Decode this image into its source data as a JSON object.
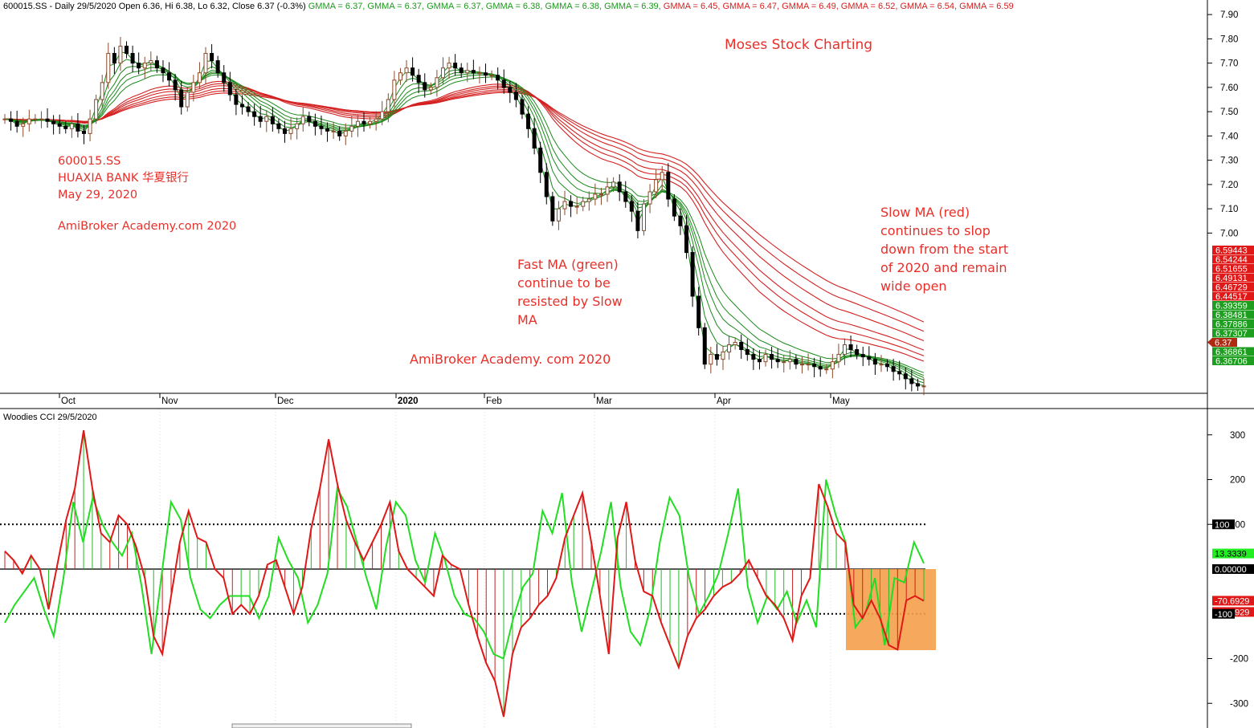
{
  "header": {
    "prefix": "600015.SS - Daily 29/5/2020 Open 6.36, Hi 6.38, Lo 6.32, Close 6.37 (-0.3%)",
    "gmma": [
      {
        "text": "GMMA = 6.37,",
        "color": "#1a9a1a"
      },
      {
        "text": "GMMA = 6.37,",
        "color": "#1a9a1a"
      },
      {
        "text": "GMMA = 6.37,",
        "color": "#1a9a1a"
      },
      {
        "text": "GMMA = 6.38,",
        "color": "#1a9a1a"
      },
      {
        "text": "GMMA = 6.38,",
        "color": "#1a9a1a"
      },
      {
        "text": "GMMA = 6.39,",
        "color": "#1a9a1a"
      },
      {
        "text": "GMMA = 6.45,",
        "color": "#d42020"
      },
      {
        "text": "GMMA = 6.47,",
        "color": "#d42020"
      },
      {
        "text": "GMMA = 6.49,",
        "color": "#d42020"
      },
      {
        "text": "GMMA = 6.52,",
        "color": "#d42020"
      },
      {
        "text": "GMMA = 6.54,",
        "color": "#d42020"
      },
      {
        "text": "GMMA = 6.59",
        "color": "#d42020"
      }
    ]
  },
  "annotations": {
    "moses": "Moses Stock Charting",
    "ticker_lines": [
      "600015.SS",
      "HUAXIA BANK 华夏银行",
      "May 29, 2020"
    ],
    "academy_top": "AmiBroker Academy.com  2020",
    "fast_ma_lines": [
      "Fast MA (green)",
      "continue to be",
      "resisted by Slow",
      "MA"
    ],
    "academy_mid": "AmiBroker Academy. com  2020",
    "slow_ma_lines": [
      "Slow MA (red)",
      "continues to slop",
      "down from the start",
      "of 2020 and remain",
      "wide open"
    ]
  },
  "cci_header": "Woodies CCI  29/5/2020",
  "chart_data": [
    {
      "type": "candlestick",
      "title": "600015.SS - Daily 29/5/2020",
      "ylim": [
        6.34,
        7.96
      ],
      "y_ticks": [
        "7.90",
        "7.80",
        "7.70",
        "7.60",
        "7.50",
        "7.40",
        "7.30",
        "7.20",
        "7.10",
        "7.00"
      ],
      "month_labels": [
        "Oct",
        "Nov",
        "Dec",
        "2020",
        "Feb",
        "Mar",
        "Apr",
        "May"
      ],
      "ohlc": {
        "open": 6.36,
        "high": 6.38,
        "low": 6.32,
        "close": 6.37,
        "change_pct": -0.3
      },
      "gmma_fast_last": [
        6.37,
        6.37,
        6.37,
        6.38,
        6.38,
        6.39
      ],
      "gmma_slow_last": [
        6.45,
        6.47,
        6.49,
        6.52,
        6.54,
        6.59
      ],
      "close_series": [
        7.47,
        7.46,
        7.44,
        7.45,
        7.47,
        7.47,
        7.47,
        7.46,
        7.45,
        7.44,
        7.43,
        7.45,
        7.42,
        7.41,
        7.47,
        7.55,
        7.62,
        7.74,
        7.7,
        7.77,
        7.74,
        7.7,
        7.68,
        7.7,
        7.71,
        7.68,
        7.66,
        7.63,
        7.59,
        7.52,
        7.58,
        7.62,
        7.66,
        7.74,
        7.71,
        7.66,
        7.62,
        7.57,
        7.53,
        7.52,
        7.5,
        7.48,
        7.46,
        7.48,
        7.45,
        7.43,
        7.41,
        7.43,
        7.45,
        7.48,
        7.46,
        7.44,
        7.43,
        7.42,
        7.42,
        7.4,
        7.42,
        7.44,
        7.46,
        7.45,
        7.46,
        7.47,
        7.5,
        7.55,
        7.63,
        7.66,
        7.68,
        7.65,
        7.62,
        7.59,
        7.6,
        7.64,
        7.68,
        7.7,
        7.68,
        7.66,
        7.67,
        7.66,
        7.66,
        7.65,
        7.65,
        7.63,
        7.6,
        7.58,
        7.55,
        7.49,
        7.43,
        7.35,
        7.25,
        7.15,
        7.05,
        7.1,
        7.13,
        7.11,
        7.11,
        7.13,
        7.14,
        7.16,
        7.16,
        7.19,
        7.21,
        7.17,
        7.13,
        7.09,
        7.01,
        7.12,
        7.17,
        7.22,
        7.25,
        7.14,
        7.07,
        7.03,
        6.92,
        6.74,
        6.61,
        6.46,
        6.5,
        6.48,
        6.51,
        6.54,
        6.55,
        6.52,
        6.5,
        6.48,
        6.47,
        6.5,
        6.48,
        6.47,
        6.47,
        6.48,
        6.46,
        6.46,
        6.46,
        6.45,
        6.44,
        6.44,
        6.47,
        6.5,
        6.54,
        6.52,
        6.5,
        6.49,
        6.48,
        6.46,
        6.46,
        6.45,
        6.43,
        6.42,
        6.4,
        6.38,
        6.37,
        6.37
      ],
      "price_tags": [
        {
          "text": "6.59443",
          "color": "#e01818"
        },
        {
          "text": "6.54244",
          "color": "#e01818"
        },
        {
          "text": "6.51655",
          "color": "#e01818"
        },
        {
          "text": "6.49131",
          "color": "#e01818"
        },
        {
          "text": "6.46729",
          "color": "#e01818"
        },
        {
          "text": "6.44517",
          "color": "#e01818"
        },
        {
          "text": "6.39359",
          "color": "#1e9e1e"
        },
        {
          "text": "6.38481",
          "color": "#1e9e1e"
        },
        {
          "text": "6.37886",
          "color": "#1e9e1e"
        },
        {
          "text": "6.37307",
          "color": "#1e9e1e"
        },
        {
          "text": "6.37",
          "color": "#b02a12"
        },
        {
          "text": "6.36861",
          "color": "#1e9e1e"
        },
        {
          "text": "6.36706",
          "color": "#1e9e1e"
        }
      ]
    },
    {
      "type": "line",
      "title": "Woodies CCI",
      "ylim": [
        -350,
        350
      ],
      "y_ticks": [
        "300",
        "200",
        "100",
        "-200",
        "-300"
      ],
      "reference_lines": [
        100,
        0,
        -100
      ],
      "cci_red": [
        40,
        20,
        -10,
        30,
        0,
        -90,
        10,
        110,
        180,
        310,
        180,
        80,
        60,
        120,
        100,
        50,
        -20,
        -150,
        -190,
        -60,
        60,
        130,
        70,
        60,
        0,
        -20,
        -100,
        -80,
        -100,
        -60,
        10,
        20,
        -40,
        -100,
        -40,
        90,
        180,
        290,
        190,
        110,
        60,
        20,
        60,
        100,
        150,
        40,
        0,
        -20,
        -40,
        -60,
        30,
        10,
        0,
        -80,
        -150,
        -210,
        -250,
        -330,
        -190,
        -130,
        -110,
        -80,
        -60,
        -20,
        70,
        120,
        170,
        60,
        -60,
        -190,
        70,
        150,
        20,
        -50,
        -60,
        -120,
        -170,
        -220,
        -150,
        -110,
        -90,
        -60,
        -40,
        -30,
        -10,
        20,
        -20,
        -60,
        -80,
        -110,
        -160,
        -60,
        -20,
        190,
        140,
        80,
        60,
        -80,
        -110,
        -70,
        -110,
        -170,
        -180,
        -70,
        -60,
        -71
      ],
      "cci_green": [
        -120,
        -80,
        -50,
        -20,
        -90,
        -150,
        -20,
        150,
        60,
        160,
        100,
        60,
        30,
        80,
        -40,
        -190,
        -20,
        150,
        110,
        -20,
        -90,
        -110,
        -80,
        -60,
        -60,
        -60,
        -110,
        -60,
        70,
        20,
        -20,
        -120,
        -80,
        -10,
        180,
        140,
        60,
        -20,
        -90,
        50,
        150,
        120,
        20,
        -30,
        80,
        20,
        -60,
        -100,
        -110,
        -140,
        -190,
        -200,
        -110,
        -40,
        -10,
        130,
        80,
        170,
        -30,
        -140,
        -50,
        40,
        150,
        -40,
        -140,
        -170,
        -90,
        60,
        160,
        120,
        -20,
        -100,
        -60,
        -10,
        80,
        180,
        -40,
        -120,
        -60,
        -90,
        -50,
        -120,
        -70,
        -130,
        200,
        120,
        60,
        -130,
        -100,
        -20,
        -170,
        -20,
        -30,
        60,
        13
      ]
    }
  ]
}
